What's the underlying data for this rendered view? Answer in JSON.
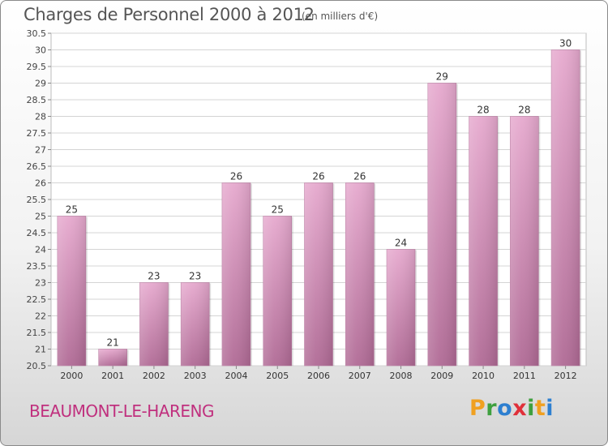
{
  "header": {
    "title": "Charges de Personnel 2000 à 2012",
    "subtitle": "(en milliers d'€)"
  },
  "footer": {
    "city": "BEAUMONT-LE-HARENG",
    "logo_letters": [
      "P",
      "r",
      "o",
      "x",
      "i",
      "t",
      "i"
    ],
    "logo_colors": [
      "#f0a020",
      "#3fa03f",
      "#2d7fd0",
      "#e0303a",
      "#3fa03f",
      "#f0a020",
      "#2d7fd0"
    ]
  },
  "chart_data": {
    "type": "bar",
    "categories": [
      "2000",
      "2001",
      "2002",
      "2003",
      "2004",
      "2005",
      "2006",
      "2007",
      "2008",
      "2009",
      "2010",
      "2011",
      "2012"
    ],
    "values": [
      25,
      21,
      23,
      23,
      26,
      25,
      26,
      26,
      24,
      29,
      28,
      28,
      30
    ],
    "data_labels": [
      "25",
      "21",
      "23",
      "23",
      "26",
      "25",
      "26",
      "26",
      "24",
      "29",
      "28",
      "28",
      "30"
    ],
    "title": "Charges de Personnel 2000 à 2012",
    "subtitle": "(en milliers d'€)",
    "ylim": [
      20.5,
      30.5
    ],
    "yticks": [
      "20.5",
      "21",
      "21.5",
      "22",
      "22.5",
      "23",
      "23.5",
      "24",
      "24.5",
      "25",
      "25.5",
      "26",
      "26.5",
      "27",
      "27.5",
      "28",
      "28.5",
      "29",
      "29.5",
      "30",
      "30.5"
    ],
    "grid": true,
    "bar_color": "#c679a8"
  }
}
